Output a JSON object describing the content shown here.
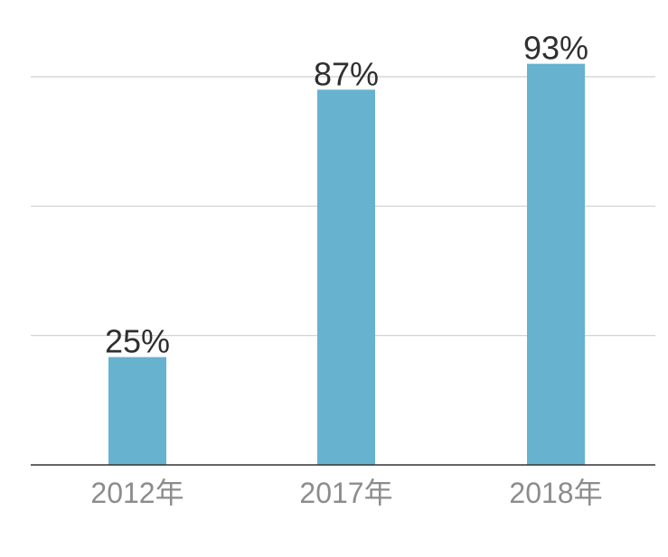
{
  "chart_data": {
    "type": "bar",
    "categories": [
      "2012年",
      "2017年",
      "2018年"
    ],
    "values": [
      25,
      87,
      93
    ],
    "value_labels": [
      "25%",
      "87%",
      "93%"
    ],
    "title": "",
    "xlabel": "",
    "ylabel": "",
    "ylim": [
      0,
      90
    ],
    "gridlines": [
      30,
      60,
      90
    ],
    "grid": true,
    "legend": "none",
    "bar_color": "#66b2cf",
    "grid_color": "#cfcfcf",
    "axis_color": "#333333"
  }
}
